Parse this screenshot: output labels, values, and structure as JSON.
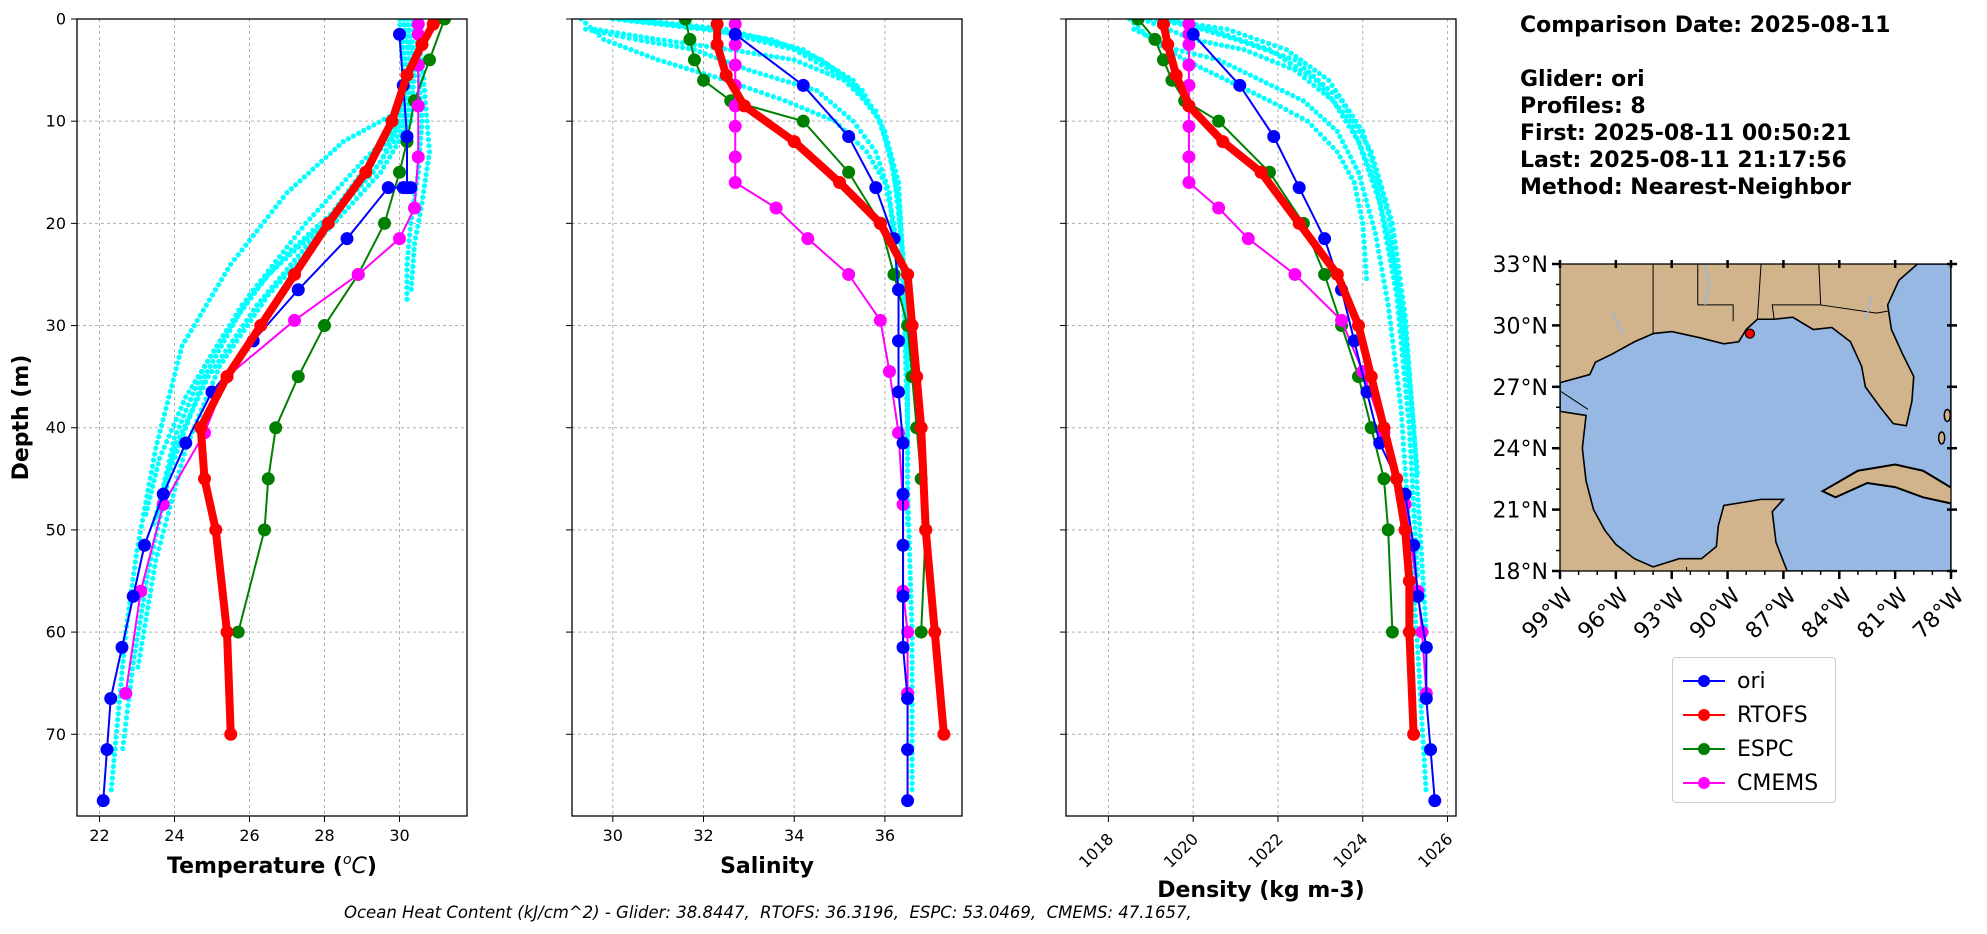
{
  "info": {
    "comparison_date": "Comparison Date: 2025-08-11",
    "glider": "Glider: ori",
    "profiles": "Profiles: 8",
    "first": "First: 2025-08-11 00:50:21",
    "last": "Last: 2025-08-11 21:17:56",
    "method": "Method: Nearest-Neighbor"
  },
  "footer": "Ocean Heat Content (kJ/cm^2) - Glider: 38.8447,  RTOFS: 36.3196,  ESPC: 53.0469,  CMEMS: 47.1657,",
  "legend": [
    {
      "label": "ori",
      "color": "#0000ff"
    },
    {
      "label": "RTOFS",
      "color": "#ff0000"
    },
    {
      "label": "ESPC",
      "color": "#008000"
    },
    {
      "label": "CMEMS",
      "color": "#ff00ff"
    }
  ],
  "colors": {
    "raw_profiles": "#00ffff",
    "grid": "#b0b0b0",
    "land": "#d2b48c",
    "ocean": "#96b8e3",
    "glider_marker": "#ff0000"
  },
  "chart_data": [
    {
      "type": "line",
      "xlabel": "Temperature ($^oC$)",
      "ylabel": "Depth (m)",
      "xlim": [
        21.4,
        31.8
      ],
      "ylim": [
        78,
        0
      ],
      "xticks": [
        22,
        24,
        26,
        28,
        30
      ],
      "yticks": [
        0,
        10,
        20,
        30,
        40,
        50,
        60,
        70
      ],
      "grid": true,
      "series": [
        {
          "name": "ori",
          "x": [
            30.0,
            30.1,
            30.2,
            30.2,
            30.1,
            30.3,
            29.7,
            28.6,
            27.3,
            26.1,
            25.0,
            24.3,
            23.7,
            23.2,
            22.9,
            22.6,
            22.3,
            22.2,
            22.1
          ],
          "y": [
            1.5,
            6.5,
            11.5,
            16.5,
            16.5,
            16.5,
            16.5,
            21.5,
            26.5,
            31.5,
            36.5,
            41.5,
            46.5,
            51.5,
            56.5,
            61.5,
            66.5,
            71.5,
            76.5
          ]
        },
        {
          "name": "RTOFS",
          "x": [
            30.9,
            30.6,
            30.2,
            29.8,
            29.1,
            28.1,
            27.2,
            26.3,
            25.4,
            24.7,
            24.8,
            25.1,
            25.4,
            25.5
          ],
          "y": [
            0.5,
            2.5,
            5.5,
            10.0,
            15.0,
            20.0,
            25.0,
            30.0,
            35.0,
            40.0,
            45.0,
            50.0,
            60.0,
            70.0
          ]
        },
        {
          "name": "ESPC",
          "x": [
            31.2,
            30.8,
            30.4,
            30.2,
            30.0,
            29.6,
            28.9,
            28.0,
            27.3,
            26.7,
            26.5,
            26.4,
            25.7
          ],
          "y": [
            0.0,
            4.0,
            8.0,
            12.0,
            15.0,
            20.0,
            25.0,
            30.0,
            35.0,
            40.0,
            45.0,
            50.0,
            60.0
          ]
        },
        {
          "name": "CMEMS",
          "x": [
            30.5,
            30.5,
            30.5,
            30.5,
            30.5,
            30.4,
            30.0,
            28.9,
            27.2,
            25.4,
            24.8,
            23.7,
            23.1,
            22.7
          ],
          "y": [
            0.5,
            1.5,
            4.5,
            8.5,
            13.5,
            18.5,
            21.5,
            25.0,
            29.5,
            35.0,
            40.5,
            47.5,
            56.0,
            66.0
          ]
        }
      ],
      "raw_profiles": [
        {
          "x": [
            30.0,
            30.1,
            30.0,
            29.5,
            28.5,
            27.0,
            25.8,
            24.8,
            24.0,
            23.5
          ],
          "y": [
            0,
            5,
            10,
            14,
            18,
            23,
            28,
            34,
            41,
            49
          ]
        },
        {
          "x": [
            30.1,
            30.3,
            30.1,
            29.0,
            28.0,
            26.5,
            25.3,
            24.3,
            23.6,
            23.2
          ],
          "y": [
            0,
            5,
            10,
            15,
            20,
            25,
            31,
            37,
            43,
            49
          ]
        },
        {
          "x": [
            30.2,
            30.5,
            30.6,
            30.5,
            30.3,
            30.2,
            30.2
          ],
          "y": [
            0,
            5,
            10,
            15,
            20,
            24,
            28
          ]
        },
        {
          "x": [
            30.3,
            30.6,
            30.8,
            30.6,
            30.4,
            30.3
          ],
          "y": [
            0,
            4,
            13,
            18,
            22,
            27
          ]
        },
        {
          "x": [
            30.1,
            30.4,
            30.0,
            28.5,
            27.0,
            25.5,
            24.2,
            23.5,
            23.0,
            22.7,
            22.5,
            22.3
          ],
          "y": [
            0,
            4,
            9,
            12,
            17,
            24,
            32,
            42,
            52,
            60,
            68,
            76
          ]
        },
        {
          "x": [
            30.0,
            30.2,
            30.1,
            29.0,
            27.5,
            26.0,
            24.8,
            23.9,
            23.3,
            22.9,
            22.6
          ],
          "y": [
            0,
            5,
            10,
            14,
            20,
            27,
            35,
            44,
            54,
            63,
            72
          ]
        },
        {
          "x": [
            30.2,
            30.4,
            30.3,
            29.5,
            28.0,
            26.5,
            25.2,
            24.3,
            23.5,
            23.0
          ],
          "y": [
            0,
            5,
            10,
            15,
            21,
            27,
            34,
            42,
            53,
            64
          ]
        },
        {
          "x": [
            30.1,
            30.3,
            30.2,
            29.3,
            27.8,
            26.2,
            24.9,
            24.0,
            23.4
          ],
          "y": [
            0,
            5,
            10,
            15,
            21,
            28,
            35,
            42,
            50
          ]
        }
      ]
    },
    {
      "type": "line",
      "xlabel": "Salinity",
      "xlim": [
        29.1,
        37.7
      ],
      "ylim": [
        78,
        0
      ],
      "xticks": [
        30,
        32,
        34,
        36
      ],
      "yticks": [
        0,
        10,
        20,
        30,
        40,
        50,
        60,
        70
      ],
      "grid": true,
      "series": [
        {
          "name": "ori",
          "x": [
            32.7,
            34.2,
            35.2,
            35.8,
            36.2,
            36.3,
            36.3,
            36.3,
            36.4,
            36.4,
            36.4,
            36.4,
            36.4,
            36.5,
            36.5,
            36.5
          ],
          "y": [
            1.5,
            6.5,
            11.5,
            16.5,
            21.5,
            26.5,
            31.5,
            36.5,
            41.5,
            46.5,
            51.5,
            56.5,
            61.5,
            66.5,
            71.5,
            76.5
          ]
        },
        {
          "name": "RTOFS",
          "x": [
            32.3,
            32.3,
            32.5,
            32.9,
            34.0,
            35.0,
            35.9,
            36.5,
            36.6,
            36.7,
            36.8,
            36.9,
            37.1,
            37.3
          ],
          "y": [
            0.5,
            2.5,
            5.5,
            8.5,
            12.0,
            16.0,
            20.0,
            25.0,
            30.0,
            35.0,
            40.0,
            50.0,
            60.0,
            70.0
          ]
        },
        {
          "name": "ESPC",
          "x": [
            31.6,
            31.7,
            31.8,
            32.0,
            32.6,
            34.2,
            35.2,
            35.9,
            36.2,
            36.5,
            36.6,
            36.7,
            36.8,
            36.9,
            36.8
          ],
          "y": [
            0.0,
            2.0,
            4.0,
            6.0,
            8.0,
            10.0,
            15.0,
            20.0,
            25.0,
            30.0,
            35.0,
            40.0,
            45.0,
            50.0,
            60.0
          ]
        },
        {
          "name": "CMEMS",
          "x": [
            32.7,
            32.7,
            32.7,
            32.7,
            32.7,
            32.7,
            32.7,
            32.7,
            32.7,
            33.6,
            34.3,
            35.2,
            35.9,
            36.1,
            36.3,
            36.4,
            36.4,
            36.5,
            36.5,
            36.5
          ],
          "y": [
            0.5,
            1.5,
            2.5,
            4.5,
            6.5,
            8.5,
            10.5,
            13.5,
            16.0,
            18.5,
            21.5,
            25.0,
            29.5,
            34.5,
            40.5,
            47.5,
            56.0,
            60.0,
            66.0,
            66.0
          ]
        }
      ],
      "raw_profiles": [
        {
          "x": [
            29.3,
            29.8,
            31.0,
            32.5,
            33.8,
            34.9,
            35.6,
            36.0,
            36.2,
            36.3
          ],
          "y": [
            0,
            2,
            4,
            6,
            8,
            10,
            13,
            16,
            20,
            26
          ]
        },
        {
          "x": [
            29.4,
            30.5,
            31.8,
            33.0,
            34.5,
            35.3,
            35.8,
            36.1,
            36.2
          ],
          "y": [
            1,
            2,
            3,
            5,
            7,
            10,
            13,
            17,
            22
          ]
        },
        {
          "x": [
            29.6,
            31.0,
            32.6,
            34.0,
            35.1,
            35.8,
            36.1,
            36.3,
            36.4,
            36.5
          ],
          "y": [
            1,
            2,
            3,
            4,
            6,
            9,
            13,
            18,
            25,
            34
          ]
        },
        {
          "x": [
            30.0,
            32.0,
            33.5,
            34.6,
            35.5,
            36.0,
            36.3,
            36.4,
            36.5,
            36.5,
            36.6,
            36.6
          ],
          "y": [
            0,
            1,
            2,
            4,
            7,
            11,
            16,
            24,
            34,
            46,
            60,
            76
          ]
        },
        {
          "x": [
            30.2,
            32.2,
            34.0,
            35.2,
            35.9,
            36.2,
            36.4,
            36.5,
            36.5
          ],
          "y": [
            0,
            1,
            3,
            6,
            10,
            15,
            23,
            35,
            50
          ]
        },
        {
          "x": [
            30.4,
            32.5,
            34.2,
            35.3,
            35.9,
            36.3,
            36.4,
            36.5
          ],
          "y": [
            0,
            1,
            3,
            6,
            10,
            16,
            25,
            40
          ]
        }
      ]
    },
    {
      "type": "line",
      "xlabel": "Density (kg m-3)",
      "xlim": [
        1017.0,
        1026.2
      ],
      "ylim": [
        78,
        0
      ],
      "xticks": [
        1018,
        1020,
        1022,
        1024,
        1026
      ],
      "yticks": [
        0,
        10,
        20,
        30,
        40,
        50,
        60,
        70
      ],
      "grid": true,
      "series": [
        {
          "name": "ori",
          "x": [
            1020.0,
            1021.1,
            1021.9,
            1022.5,
            1023.1,
            1023.5,
            1023.8,
            1024.1,
            1024.4,
            1024.8,
            1025.0,
            1025.2,
            1025.3,
            1025.5,
            1025.5,
            1025.6,
            1025.7
          ],
          "y": [
            1.5,
            6.5,
            11.5,
            16.5,
            21.5,
            26.5,
            31.5,
            36.5,
            41.5,
            45.0,
            46.5,
            51.5,
            56.5,
            61.5,
            66.5,
            71.5,
            76.5
          ]
        },
        {
          "name": "RTOFS",
          "x": [
            1019.3,
            1019.4,
            1019.6,
            1019.9,
            1020.7,
            1021.6,
            1022.5,
            1023.4,
            1023.9,
            1024.2,
            1024.5,
            1024.8,
            1025.0,
            1025.1,
            1025.1,
            1025.2
          ],
          "y": [
            0.5,
            2.5,
            5.5,
            8.5,
            12.0,
            15.0,
            20.0,
            25.0,
            30.0,
            35.0,
            40.0,
            45.0,
            50.0,
            55.0,
            60.0,
            70.0
          ]
        },
        {
          "name": "ESPC",
          "x": [
            1018.7,
            1019.1,
            1019.3,
            1019.5,
            1019.8,
            1020.6,
            1021.8,
            1022.6,
            1023.1,
            1023.5,
            1023.9,
            1024.2,
            1024.5,
            1024.6,
            1024.7
          ],
          "y": [
            0.0,
            2.0,
            4.0,
            6.0,
            8.0,
            10.0,
            15.0,
            20.0,
            25.0,
            30.0,
            35.0,
            40.0,
            45.0,
            50.0,
            60.0
          ]
        },
        {
          "name": "CMEMS",
          "x": [
            1019.9,
            1019.9,
            1019.9,
            1019.9,
            1019.9,
            1019.9,
            1019.9,
            1019.9,
            1019.9,
            1020.6,
            1021.3,
            1022.4,
            1023.5,
            1024.0,
            1024.5,
            1025.0,
            1025.3,
            1025.4,
            1025.5
          ],
          "y": [
            0.5,
            1.5,
            2.5,
            4.5,
            6.5,
            8.5,
            10.5,
            13.5,
            16.0,
            18.5,
            21.5,
            25.0,
            29.5,
            34.5,
            40.5,
            47.5,
            56.0,
            60.0,
            66.0
          ]
        }
      ],
      "raw_profiles": [
        {
          "x": [
            1018.5,
            1019.0,
            1019.8,
            1020.8,
            1021.8,
            1022.7,
            1023.4,
            1023.8,
            1024.0,
            1024.1
          ],
          "y": [
            0,
            2,
            4,
            6,
            8,
            10,
            13,
            16,
            20,
            26
          ]
        },
        {
          "x": [
            1018.6,
            1019.6,
            1020.6,
            1021.6,
            1022.6,
            1023.4,
            1023.9,
            1024.3,
            1024.6,
            1024.9,
            1025.1,
            1025.3,
            1025.5
          ],
          "y": [
            1,
            3,
            4,
            6,
            8,
            11,
            15,
            21,
            28,
            38,
            50,
            62,
            76
          ]
        },
        {
          "x": [
            1018.8,
            1020.0,
            1021.2,
            1022.4,
            1023.3,
            1023.9,
            1024.4,
            1024.8,
            1025.1,
            1025.3
          ],
          "y": [
            0,
            2,
            3,
            5,
            8,
            12,
            18,
            27,
            40,
            55
          ]
        },
        {
          "x": [
            1019.0,
            1020.4,
            1021.8,
            1022.9,
            1023.7,
            1024.3,
            1024.8,
            1025.2,
            1025.5
          ],
          "y": [
            0,
            1,
            3,
            6,
            10,
            16,
            25,
            40,
            60
          ]
        },
        {
          "x": [
            1019.2,
            1020.8,
            1022.2,
            1023.2,
            1024.0,
            1024.6,
            1025.0,
            1025.3
          ],
          "y": [
            0,
            1,
            3,
            6,
            11,
            19,
            30,
            45
          ]
        },
        {
          "x": [
            1019.4,
            1021.0,
            1022.4,
            1023.5,
            1024.2,
            1024.7,
            1025.0,
            1025.2
          ],
          "y": [
            0,
            2,
            4,
            8,
            13,
            20,
            29,
            40
          ]
        }
      ]
    },
    {
      "type": "map",
      "xticks": [
        "99°W",
        "96°W",
        "93°W",
        "90°W",
        "87°W",
        "84°W",
        "81°W",
        "78°W"
      ],
      "yticks": [
        "18°N",
        "21°N",
        "24°N",
        "27°N",
        "30°N",
        "33°N"
      ],
      "lon_range": [
        -99,
        -78
      ],
      "lat_range": [
        18,
        33
      ],
      "glider_position": {
        "lon": -88.8,
        "lat": 29.6
      }
    }
  ]
}
